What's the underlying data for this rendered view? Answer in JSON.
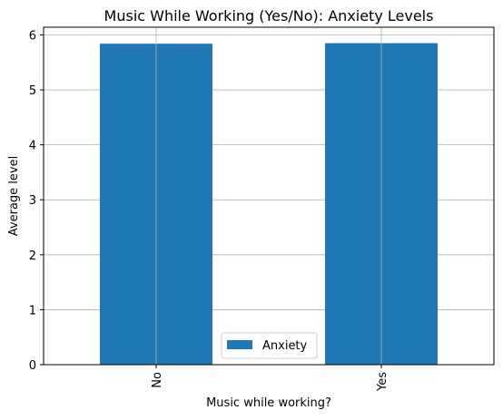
{
  "chart_data": {
    "type": "bar",
    "title": "Music While Working (Yes/No): Anxiety Levels",
    "xlabel": "Music while working?",
    "ylabel": "Average level",
    "categories": [
      "No",
      "Yes"
    ],
    "series": [
      {
        "name": "Anxiety",
        "values": [
          5.84,
          5.85
        ],
        "color": "#1f77b4"
      }
    ],
    "ylim": [
      0,
      6.14
    ],
    "yticks": [
      0,
      1,
      2,
      3,
      4,
      5,
      6
    ],
    "grid": true,
    "legend": "lower center"
  }
}
